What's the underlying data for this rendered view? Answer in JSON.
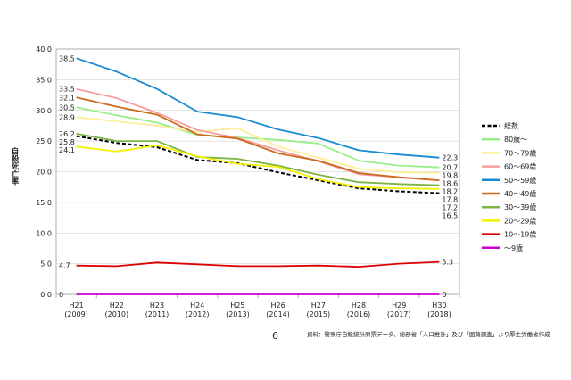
{
  "page_number": "6",
  "source_note": "資料：警察庁自殺統計原票データ、総務省「人口推計」及び「国勢調査」より厚生労働省作成",
  "chart_data": {
    "type": "line",
    "ylabel": "自殺死亡率",
    "ylim": [
      0,
      40
    ],
    "yticks": [
      "0.0",
      "5.0",
      "10.0",
      "15.0",
      "20.0",
      "25.0",
      "30.0",
      "35.0",
      "40.0"
    ],
    "grid": true,
    "legend_position": "right",
    "categories": [
      {
        "label": "H21",
        "sub": "(2009)"
      },
      {
        "label": "H22",
        "sub": "(2010)"
      },
      {
        "label": "H23",
        "sub": "(2011)"
      },
      {
        "label": "H24",
        "sub": "(2012)"
      },
      {
        "label": "H25",
        "sub": "(2013)"
      },
      {
        "label": "H26",
        "sub": "(2014)"
      },
      {
        "label": "H27",
        "sub": "(2015)"
      },
      {
        "label": "H28",
        "sub": "(2016)"
      },
      {
        "label": "H29",
        "sub": "(2017)"
      },
      {
        "label": "H30",
        "sub": "(2018)"
      }
    ],
    "series": [
      {
        "name": "総数",
        "color": "#000000",
        "dashed": true,
        "values": [
          25.8,
          24.7,
          24.0,
          21.9,
          21.4,
          19.9,
          18.6,
          17.3,
          16.8,
          16.5
        ],
        "first_label": "25.8",
        "last_label": "16.5"
      },
      {
        "name": "80歳～",
        "color": "#99ee88",
        "dashed": false,
        "values": [
          30.5,
          29.2,
          28.0,
          26.0,
          25.6,
          25.2,
          24.6,
          21.8,
          21.0,
          20.7
        ],
        "first_label": "30.5",
        "last_label": "20.7"
      },
      {
        "name": "70～79歳",
        "color": "#ffee99",
        "dashed": false,
        "values": [
          28.9,
          28.2,
          27.5,
          26.5,
          27.1,
          24.1,
          22.3,
          20.5,
          19.9,
          19.8
        ],
        "first_label": "28.9",
        "last_label": "19.8"
      },
      {
        "name": "60～69歳",
        "color": "#f4a0a0",
        "dashed": false,
        "values": [
          33.5,
          32.0,
          29.6,
          26.8,
          25.5,
          23.5,
          21.7,
          19.6,
          19.1,
          18.6
        ],
        "first_label": "33.5",
        "last_label": "18.6"
      },
      {
        "name": "50～59歳",
        "color": "#1a8ad0",
        "dashed": false,
        "values": [
          38.5,
          36.3,
          33.5,
          29.8,
          28.9,
          26.9,
          25.5,
          23.5,
          22.8,
          22.3
        ],
        "first_label": "38.5",
        "last_label": "22.3"
      },
      {
        "name": "40～49歳",
        "color": "#cc6a1e",
        "dashed": false,
        "values": [
          32.1,
          30.6,
          29.3,
          26.1,
          25.4,
          23.0,
          21.8,
          19.8,
          19.1,
          18.6
        ],
        "first_label": "32.1",
        "last_label": ""
      },
      {
        "name": "30～39歳",
        "color": "#7cb342",
        "dashed": false,
        "values": [
          26.2,
          25.0,
          25.0,
          22.4,
          22.1,
          21.0,
          19.5,
          18.3,
          18.0,
          17.8
        ],
        "first_label": "26.2",
        "last_label": "17.8"
      },
      {
        "name": "20～29歳",
        "color": "#f2f200",
        "dashed": false,
        "values": [
          24.1,
          23.3,
          24.3,
          22.5,
          21.3,
          20.8,
          18.8,
          17.5,
          17.3,
          17.2
        ],
        "first_label": "24.1",
        "last_label": "17.2"
      },
      {
        "name": "10～19歳",
        "color": "#dd0000",
        "dashed": false,
        "values": [
          4.7,
          4.6,
          5.2,
          4.9,
          4.6,
          4.6,
          4.7,
          4.5,
          5.0,
          5.3
        ],
        "first_label": "4.7",
        "last_label": "5.3"
      },
      {
        "name": "～9歳",
        "color": "#cc00cc",
        "dashed": false,
        "values": [
          0,
          0,
          0,
          0,
          0,
          0,
          0,
          0,
          0,
          0
        ],
        "first_label": "0",
        "last_label": "0"
      }
    ],
    "extra_right_labels": [
      "18.2"
    ]
  }
}
